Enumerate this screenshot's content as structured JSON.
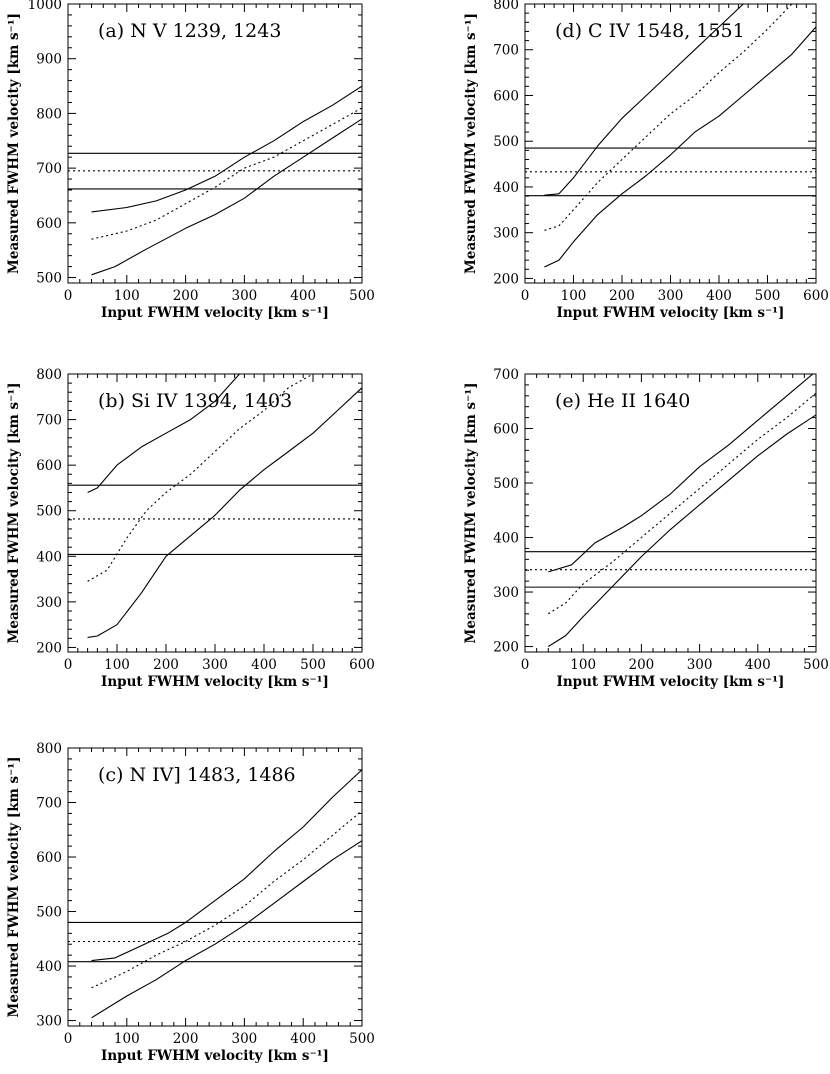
{
  "chart_data": [
    {
      "id": "a",
      "type": "line",
      "title": "(a) N V 1239, 1243",
      "xlabel": "Input FWHM velocity [km s⁻¹]",
      "ylabel": "Measured FWHM velocity [km s⁻¹]",
      "xlim": [
        0,
        500
      ],
      "ylim": [
        490,
        1000
      ],
      "xticks": [
        0,
        100,
        200,
        300,
        400,
        500
      ],
      "yticks": [
        500,
        600,
        700,
        800,
        900,
        1000
      ],
      "series": [
        {
          "style": "solid",
          "x": [
            40,
            80,
            130,
            200,
            250,
            300,
            350,
            400,
            450,
            500
          ],
          "y": [
            505,
            520,
            550,
            590,
            615,
            645,
            685,
            720,
            755,
            790
          ]
        },
        {
          "style": "dotted",
          "x": [
            40,
            100,
            150,
            200,
            250,
            300,
            350,
            400,
            450,
            500
          ],
          "y": [
            570,
            585,
            605,
            635,
            665,
            700,
            720,
            750,
            780,
            810
          ]
        },
        {
          "style": "solid",
          "x": [
            40,
            100,
            150,
            200,
            250,
            300,
            350,
            400,
            450,
            500
          ],
          "y": [
            620,
            628,
            640,
            660,
            685,
            720,
            750,
            785,
            815,
            850
          ]
        }
      ],
      "hlines": [
        {
          "style": "solid",
          "y": 662
        },
        {
          "style": "dotted",
          "y": 695
        },
        {
          "style": "solid",
          "y": 727
        }
      ]
    },
    {
      "id": "b",
      "type": "line",
      "title": "(b) Si IV 1394, 1403",
      "xlabel": "Input FWHM velocity [km s⁻¹]",
      "ylabel": "Measured FWHM velocity [km s⁻¹]",
      "xlim": [
        0,
        600
      ],
      "ylim": [
        190,
        800
      ],
      "xticks": [
        0,
        100,
        200,
        300,
        400,
        500,
        600
      ],
      "yticks": [
        200,
        300,
        400,
        500,
        600,
        700,
        800
      ],
      "series": [
        {
          "style": "solid",
          "x": [
            40,
            60,
            100,
            150,
            200,
            250,
            300,
            350,
            400,
            450,
            500,
            550,
            600
          ],
          "y": [
            222,
            225,
            250,
            320,
            400,
            445,
            490,
            545,
            590,
            630,
            670,
            720,
            770
          ]
        },
        {
          "style": "dotted",
          "x": [
            40,
            80,
            120,
            160,
            200,
            250,
            300,
            350,
            400,
            450,
            500
          ],
          "y": [
            345,
            370,
            440,
            500,
            540,
            580,
            630,
            680,
            720,
            770,
            800
          ]
        },
        {
          "style": "solid",
          "x": [
            40,
            60,
            100,
            150,
            200,
            250,
            300,
            350
          ],
          "y": [
            540,
            550,
            600,
            640,
            670,
            700,
            740,
            800
          ]
        }
      ],
      "hlines": [
        {
          "style": "solid",
          "y": 404
        },
        {
          "style": "dotted",
          "y": 482
        },
        {
          "style": "solid",
          "y": 556
        }
      ]
    },
    {
      "id": "c",
      "type": "line",
      "title": "(c) N IV] 1483, 1486",
      "xlabel": "Input FWHM velocity [km s⁻¹]",
      "ylabel": "Measured FWHM velocity [km s⁻¹]",
      "xlim": [
        0,
        500
      ],
      "ylim": [
        290,
        800
      ],
      "xticks": [
        0,
        100,
        200,
        300,
        400,
        500
      ],
      "yticks": [
        300,
        400,
        500,
        600,
        700,
        800
      ],
      "series": [
        {
          "style": "solid",
          "x": [
            40,
            100,
            150,
            200,
            250,
            300,
            350,
            400,
            450,
            500
          ],
          "y": [
            305,
            345,
            375,
            410,
            440,
            475,
            515,
            555,
            595,
            630
          ]
        },
        {
          "style": "dotted",
          "x": [
            40,
            100,
            150,
            200,
            250,
            300,
            350,
            400,
            450,
            500
          ],
          "y": [
            360,
            390,
            420,
            445,
            475,
            510,
            555,
            595,
            640,
            685
          ]
        },
        {
          "style": "solid",
          "x": [
            40,
            80,
            120,
            170,
            200,
            250,
            300,
            350,
            400,
            450,
            500
          ],
          "y": [
            410,
            415,
            435,
            460,
            480,
            520,
            560,
            610,
            655,
            710,
            760
          ]
        }
      ],
      "hlines": [
        {
          "style": "solid",
          "y": 408
        },
        {
          "style": "dotted",
          "y": 445
        },
        {
          "style": "solid",
          "y": 480
        }
      ]
    },
    {
      "id": "d",
      "type": "line",
      "title": "(d) C IV 1548, 1551",
      "xlabel": "Input FWHM velocity [km s⁻¹]",
      "ylabel": "Measured FWHM velocity [km s⁻¹]",
      "xlim": [
        0,
        600
      ],
      "ylim": [
        190,
        800
      ],
      "xticks": [
        0,
        100,
        200,
        300,
        400,
        500,
        600
      ],
      "yticks": [
        200,
        300,
        400,
        500,
        600,
        700,
        800
      ],
      "series": [
        {
          "style": "solid",
          "x": [
            40,
            70,
            100,
            150,
            200,
            250,
            300,
            350,
            400,
            450,
            500,
            550,
            600
          ],
          "y": [
            225,
            240,
            280,
            340,
            385,
            425,
            470,
            520,
            555,
            600,
            645,
            690,
            750
          ]
        },
        {
          "style": "dotted",
          "x": [
            40,
            70,
            100,
            150,
            200,
            250,
            300,
            350,
            400,
            450,
            500,
            550
          ],
          "y": [
            305,
            315,
            350,
            410,
            460,
            510,
            560,
            600,
            650,
            695,
            745,
            800
          ]
        },
        {
          "style": "solid",
          "x": [
            40,
            70,
            100,
            150,
            200,
            250,
            300,
            350,
            400,
            450
          ],
          "y": [
            382,
            385,
            420,
            490,
            550,
            600,
            650,
            700,
            750,
            800
          ]
        }
      ],
      "hlines": [
        {
          "style": "solid",
          "y": 381
        },
        {
          "style": "dotted",
          "y": 433
        },
        {
          "style": "solid",
          "y": 485
        }
      ]
    },
    {
      "id": "e",
      "type": "line",
      "title": "(e) He II 1640",
      "xlabel": "Input FWHM velocity [km s⁻¹]",
      "ylabel": "Measured FWHM velocity [km s⁻¹]",
      "xlim": [
        0,
        500
      ],
      "ylim": [
        190,
        700
      ],
      "xticks": [
        0,
        100,
        200,
        300,
        400,
        500
      ],
      "yticks": [
        200,
        300,
        400,
        500,
        600,
        700
      ],
      "series": [
        {
          "style": "solid",
          "x": [
            40,
            70,
            100,
            150,
            200,
            250,
            300,
            350,
            400,
            450,
            500
          ],
          "y": [
            200,
            220,
            255,
            310,
            365,
            415,
            460,
            505,
            550,
            590,
            625
          ]
        },
        {
          "style": "dotted",
          "x": [
            40,
            70,
            100,
            150,
            200,
            250,
            300,
            350,
            400,
            450,
            500
          ],
          "y": [
            260,
            280,
            315,
            355,
            400,
            445,
            490,
            535,
            580,
            620,
            665
          ]
        },
        {
          "style": "solid",
          "x": [
            40,
            80,
            120,
            170,
            200,
            250,
            300,
            350,
            400,
            450,
            500
          ],
          "y": [
            337,
            350,
            390,
            420,
            440,
            480,
            530,
            570,
            615,
            660,
            705
          ]
        }
      ],
      "hlines": [
        {
          "style": "solid",
          "y": 309
        },
        {
          "style": "dotted",
          "y": 341
        },
        {
          "style": "solid",
          "y": 374
        }
      ]
    }
  ]
}
